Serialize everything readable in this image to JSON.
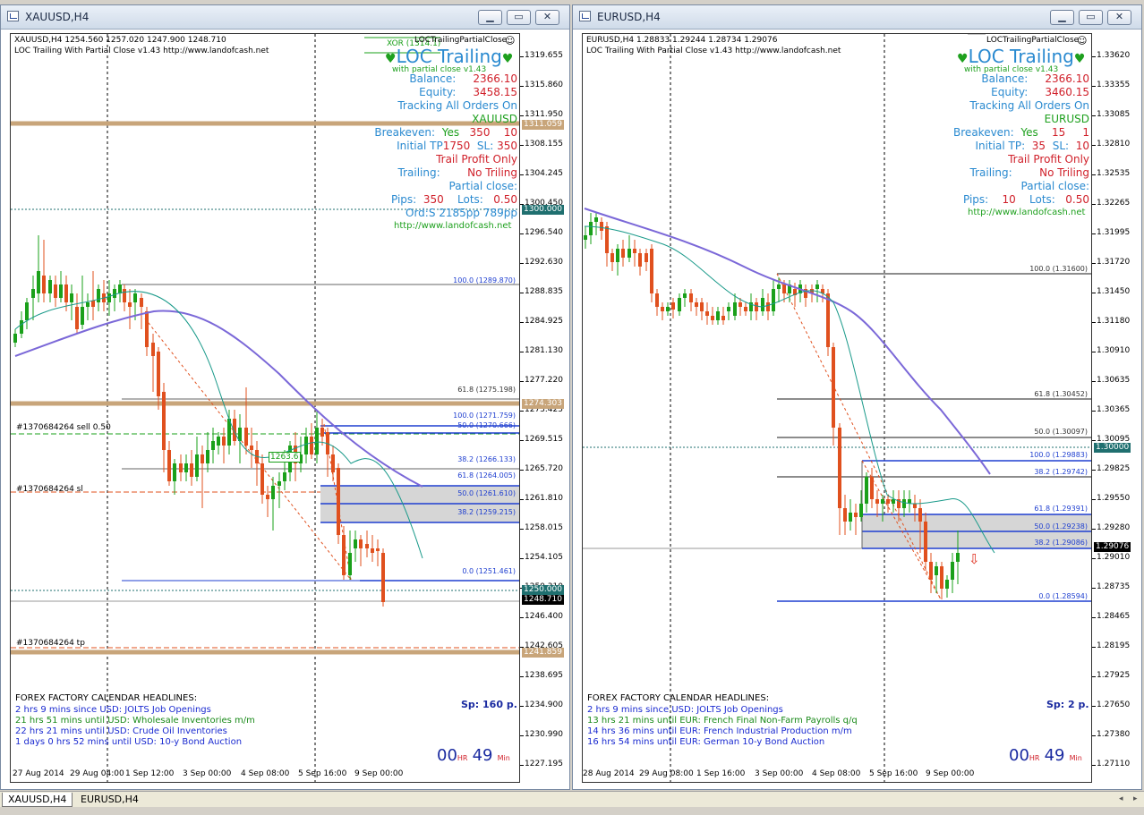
{
  "windows": [
    {
      "title": "XAUUSD,H4",
      "header_line": "XAUUSD,H4  1254.560 1257.020 1247.900 1248.710",
      "indicator": "LOC Trailing With Partial Close v1.43 http://www.landofcash.net",
      "panel": {
        "top_tag": "LOCTrailingPartialClose",
        "title": "LOC Trailing",
        "subtitle": "with partial close v1.43",
        "balance_label": "Balance:",
        "balance": "2366.10",
        "equity_label": "Equity:",
        "equity": "3458.15",
        "tracking": "Tracking All Orders On",
        "symbol": "XAUUSD",
        "breakeven_label": "Breakeven:",
        "breakeven_on": "Yes",
        "breakeven_pips": "350",
        "breakeven_lock": "10",
        "initial_label": "Initial TP",
        "initial_tp": "1750",
        "sl_label": "SL:",
        "initial_sl": "350",
        "trail_profit": "Trail Profit Only",
        "trailing_label": "Trailing:",
        "trailing": "No Triling",
        "partial": "Partial close:",
        "pips_label": "Pips:",
        "pips": "350",
        "lots_label": "Lots:",
        "lots": "0.50",
        "ord": "Ord:S  2185pp      789pp",
        "url": "http://www.landofcash.net"
      },
      "price_labels": [
        "1319.655",
        "1315.860",
        "1311.950",
        "1308.155",
        "1304.245",
        "1300.450",
        "1296.540",
        "1292.630",
        "1288.835",
        "1284.925",
        "1281.130",
        "1277.220",
        "1273.425",
        "1269.515",
        "1265.720",
        "1261.810",
        "1258.015",
        "1254.105",
        "1250.310",
        "1246.400",
        "1242.605",
        "1238.695",
        "1234.900",
        "1230.990",
        "1227.195"
      ],
      "price_tags": [
        {
          "text": "1311.059",
          "bg": "#c8a57a",
          "fg": "#ffffff"
        },
        {
          "text": "1300.000",
          "bg": "#1f6f6f",
          "fg": "#ffffff"
        },
        {
          "text": "1274.303",
          "bg": "#c8a57a",
          "fg": "#ffffff"
        },
        {
          "text": "1250.000",
          "bg": "#1f6f6f",
          "fg": "#ffffff"
        },
        {
          "text": "1248.710",
          "bg": "#000000",
          "fg": "#ffffff"
        },
        {
          "text": "1241.859",
          "bg": "#c8a57a",
          "fg": "#ffffff"
        }
      ],
      "fib": [
        "100.0 (1289.870)",
        "61.8 (1275.198)",
        "100.0 (1271.759)",
        "50.0 (1270.666)",
        "38.2 (1266.133)",
        "61.8 (1264.005)",
        "50.0 (1261.610)",
        "38.2 (1259.215)",
        "0.0 (1251.461)"
      ],
      "order_labels": [
        "#1370684264 sell 0.50",
        "#1370684264 sl",
        "#1370684264 tp"
      ],
      "box_label": "1263.6",
      "xor_label": "XOR  (1314.1)",
      "calendar": {
        "title": "FOREX FACTORY CALENDAR HEADLINES:",
        "items": [
          {
            "text": "2 hrs 9 mins since USD: JOLTS Job Openings",
            "color": "#1a2ad0"
          },
          {
            "text": "21 hrs 51 mins until USD: Wholesale Inventories m/m",
            "color": "#1a8a1a"
          },
          {
            "text": "22 hrs 21 mins until USD: Crude Oil Inventories",
            "color": "#1a2ad0"
          },
          {
            "text": "1 days 0 hrs 52 mins until USD: 10-y Bond Auction",
            "color": "#1a2ad0"
          }
        ]
      },
      "spread": "Sp: 160 p.",
      "timer": {
        "hr": "00",
        "hr_unit": "HR",
        "min": "49",
        "min_unit": "Min"
      },
      "time_labels": [
        "27 Aug 2014",
        "29 Aug 04:00",
        "1 Sep 12:00",
        "3 Sep 00:00",
        "4 Sep 08:00",
        "5 Sep 16:00",
        "9 Sep 00:00"
      ]
    },
    {
      "title": "EURUSD,H4",
      "header_line": "EURUSD,H4  1.28833 1.29244 1.28734 1.29076",
      "indicator": "LOC Trailing With Partial Close v1.43 http://www.landofcash.net",
      "panel": {
        "top_tag": "LOCTrailingPartialClose",
        "title": "LOC Trailing",
        "subtitle": "with partial close v1.43",
        "balance_label": "Balance:",
        "balance": "2366.10",
        "equity_label": "Equity:",
        "equity": "3460.15",
        "tracking": "Tracking All Orders On",
        "symbol": "EURUSD",
        "breakeven_label": "Breakeven:",
        "breakeven_on": "Yes",
        "breakeven_pips": "15",
        "breakeven_lock": "1",
        "initial_label": "Initial TP:",
        "initial_tp": "35",
        "sl_label": "SL:",
        "initial_sl": "10",
        "trail_profit": "Trail Profit Only",
        "trailing_label": "Trailing:",
        "trailing": "No Triling",
        "partial": "Partial close:",
        "pips_label": "Pips:",
        "pips": "10",
        "lots_label": "Lots:",
        "lots": "0.50",
        "url": "http://www.landofcash.net"
      },
      "price_labels": [
        "1.33620",
        "1.33355",
        "1.33085",
        "1.32810",
        "1.32535",
        "1.32265",
        "1.31995",
        "1.31720",
        "1.31450",
        "1.31180",
        "1.30910",
        "1.30635",
        "1.30365",
        "1.30095",
        "1.29825",
        "1.29550",
        "1.29280",
        "1.29010",
        "1.28735",
        "1.28465",
        "1.28195",
        "1.27925",
        "1.27650",
        "1.27380",
        "1.27110"
      ],
      "price_tags": [
        {
          "text": "1.30000",
          "bg": "#1f6f6f",
          "fg": "#ffffff"
        },
        {
          "text": "1.29076",
          "bg": "#000000",
          "fg": "#ffffff"
        }
      ],
      "fib": [
        "100.0 (1.31600)",
        "61.8 (1.30452)",
        "50.0 (1.30097)",
        "100.0 (1.29883)",
        "38.2 (1.29742)",
        "61.8 (1.29391)",
        "50.0 (1.29238)",
        "38.2 (1.29086)",
        "0.0 (1.28594)"
      ],
      "calendar": {
        "title": "FOREX FACTORY CALENDAR HEADLINES:",
        "items": [
          {
            "text": "2 hrs 9 mins since USD: JOLTS Job Openings",
            "color": "#1a2ad0"
          },
          {
            "text": "13 hrs 21 mins until EUR: French Final Non-Farm Payrolls q/q",
            "color": "#1a8a1a"
          },
          {
            "text": "14 hrs 36 mins until EUR: French Industrial Production m/m",
            "color": "#1a2ad0"
          },
          {
            "text": "16 hrs 54 mins until EUR: German 10-y Bond Auction",
            "color": "#1a2ad0"
          }
        ]
      },
      "spread": "Sp: 2 p.",
      "timer": {
        "hr": "00",
        "hr_unit": "HR",
        "min": "49",
        "min_unit": "Min"
      },
      "time_labels": [
        "28 Aug 2014",
        "29 Aug 08:00",
        "1 Sep 16:00",
        "3 Sep 00:00",
        "4 Sep 08:00",
        "5 Sep 16:00",
        "9 Sep 00:00"
      ]
    }
  ],
  "tabs": [
    {
      "label": "XAUUSD,H4",
      "active": true
    },
    {
      "label": "EURUSD,H4",
      "active": false
    }
  ],
  "colors": {
    "bull": "#1aa01a",
    "bear": "#e0501e",
    "fib": "#1f3fd0",
    "gray_line": "#666666",
    "ma_blue": "#7b68d8",
    "ma_teal": "#1a9a8a",
    "panel_blue": "#2a8ad0",
    "panel_red": "#d0202a",
    "panel_green": "#1ea01e"
  }
}
